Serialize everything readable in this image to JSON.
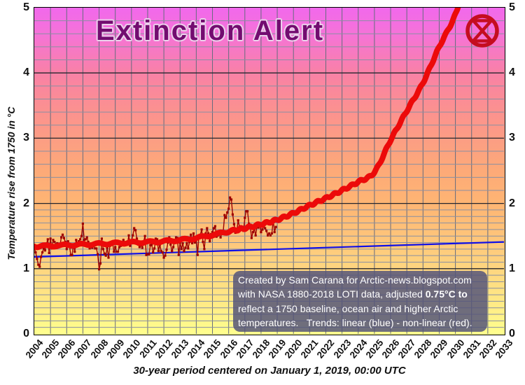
{
  "title": "Extinction Alert",
  "icon": {
    "name": "extinction-symbol",
    "color": "#c50d20"
  },
  "axes": {
    "y_label": "Temperature rise from 1750 in °C",
    "x_label": "30-year period centered on January 1, 2019, 00:00 UTC"
  },
  "annotation": {
    "line1": "Created by Sam Carana for Arctic-news.blogspot.com",
    "line2_normal": "with NASA 1880-2018 LOTI data, adjusted ",
    "line2_bold": "0.75°C to",
    "line3": "reflect a 1750 baseline, ocean air and higher Arctic",
    "line4_normal": "temperatures.   Trends: linear (blue) - non-linear (red)."
  },
  "chart_data": {
    "type": "line",
    "title": "Extinction Alert",
    "xlabel": "30-year period centered on January 1, 2019, 00:00 UTC",
    "ylabel": "Temperature rise from 1750 in °C",
    "xlim": [
      2004,
      2033
    ],
    "ylim": [
      0,
      5
    ],
    "x_ticks": [
      "2004",
      "2005",
      "2006",
      "2007",
      "2008",
      "2009",
      "2010",
      "2011",
      "2012",
      "2013",
      "2014",
      "2015",
      "2016",
      "2017",
      "2018",
      "2019",
      "2020",
      "2021",
      "2022",
      "2023",
      "2024",
      "2025",
      "2026",
      "2027",
      "2028",
      "2029",
      "2030",
      "2031",
      "2032",
      "2033"
    ],
    "y_ticks": [
      "0",
      "1",
      "2",
      "3",
      "4",
      "5"
    ],
    "y_ticks_both_sides": true,
    "grid": {
      "vertical_step_years": 1,
      "h_minor_step_below_2": 0.1,
      "h_minor_step_above_2": 0.2,
      "h_major_step": 1,
      "minor_color": "#8a90a2",
      "vertical_color": "#666c7e",
      "major_color": "#26262c"
    },
    "background_gradient_top_to_bottom": [
      "#f168ec",
      "#f573d8",
      "#f981a6",
      "#fb8f92",
      "#fc9d84",
      "#fdaa78",
      "#feb573",
      "#fec47a",
      "#fed680",
      "#ffe985",
      "#ffff8e"
    ],
    "series": [
      {
        "name": "monthly temperature (NASA LOTI, adjusted)",
        "style": "line+square-markers",
        "color": "#9e0202",
        "x_start": 2004.0,
        "x_step_years": 0.083333,
        "values": [
          1.32,
          1.25,
          1.15,
          1.06,
          1.03,
          1.18,
          1.25,
          1.31,
          1.28,
          1.38,
          1.45,
          1.24,
          1.46,
          1.31,
          1.44,
          1.41,
          1.37,
          1.39,
          1.36,
          1.35,
          1.48,
          1.52,
          1.47,
          1.41,
          1.3,
          1.42,
          1.36,
          1.21,
          1.21,
          1.37,
          1.26,
          1.44,
          1.36,
          1.42,
          1.45,
          1.5,
          1.69,
          1.44,
          1.45,
          1.48,
          1.41,
          1.31,
          1.33,
          1.32,
          1.35,
          1.31,
          1.31,
          1.22,
          0.99,
          1.08,
          1.46,
          1.3,
          1.23,
          1.2,
          1.32,
          1.17,
          1.35,
          1.38,
          1.4,
          1.26,
          1.33,
          1.26,
          1.26,
          1.33,
          1.35,
          1.38,
          1.44,
          1.37,
          1.41,
          1.37,
          1.51,
          1.35,
          1.41,
          1.51,
          1.62,
          1.59,
          1.46,
          1.37,
          1.33,
          1.36,
          1.32,
          1.41,
          1.5,
          1.21,
          1.22,
          1.22,
          1.36,
          1.37,
          1.25,
          1.31,
          1.46,
          1.45,
          1.27,
          1.37,
          1.27,
          1.25,
          1.17,
          1.2,
          1.29,
          1.4,
          1.48,
          1.37,
          1.27,
          1.33,
          1.43,
          1.48,
          1.47,
          1.21,
          1.4,
          1.3,
          1.39,
          1.27,
          1.32,
          1.39,
          1.31,
          1.41,
          1.52,
          1.39,
          1.54,
          1.4,
          1.48,
          1.21,
          1.51,
          1.52,
          1.6,
          1.41,
          1.3,
          1.54,
          1.62,
          1.54,
          1.42,
          1.53,
          1.56,
          1.62,
          1.65,
          1.49,
          1.51,
          1.53,
          1.48,
          1.54,
          1.57,
          1.82,
          1.78,
          1.86,
          1.92,
          2.09,
          2.06,
          1.83,
          1.68,
          1.55,
          1.57,
          1.74,
          1.64,
          1.65,
          1.64,
          1.58,
          1.78,
          1.88,
          1.88,
          1.69,
          1.65,
          1.47,
          1.56,
          1.61,
          1.51,
          1.65,
          1.63,
          1.68,
          1.56,
          1.6,
          1.65,
          1.62,
          1.58,
          1.51,
          1.54,
          1.51,
          1.54,
          1.75,
          1.56,
          1.64
        ]
      },
      {
        "name": "non-linear trend (red)",
        "style": "thick-wiggly-curve",
        "color": "#ec0a0a",
        "points": [
          [
            2004,
            1.34
          ],
          [
            2006,
            1.36
          ],
          [
            2008,
            1.38
          ],
          [
            2010,
            1.4
          ],
          [
            2012,
            1.42
          ],
          [
            2014,
            1.47
          ],
          [
            2016,
            1.57
          ],
          [
            2017,
            1.62
          ],
          [
            2018,
            1.68
          ],
          [
            2019,
            1.75
          ],
          [
            2020,
            1.85
          ],
          [
            2021,
            1.97
          ],
          [
            2022,
            2.08
          ],
          [
            2023,
            2.2
          ],
          [
            2024,
            2.33
          ],
          [
            2025,
            2.48
          ],
          [
            2026,
            2.97
          ],
          [
            2027,
            3.42
          ],
          [
            2028,
            3.85
          ],
          [
            2029,
            4.4
          ],
          [
            2030,
            4.9
          ],
          [
            2030.6,
            5.45
          ]
        ]
      },
      {
        "name": "linear trend (blue)",
        "style": "line",
        "color": "#0f0fe8",
        "points": [
          [
            2004,
            1.18
          ],
          [
            2033,
            1.41
          ]
        ]
      }
    ],
    "legend": "in annotation box: linear (blue) - non-linear (red)"
  }
}
